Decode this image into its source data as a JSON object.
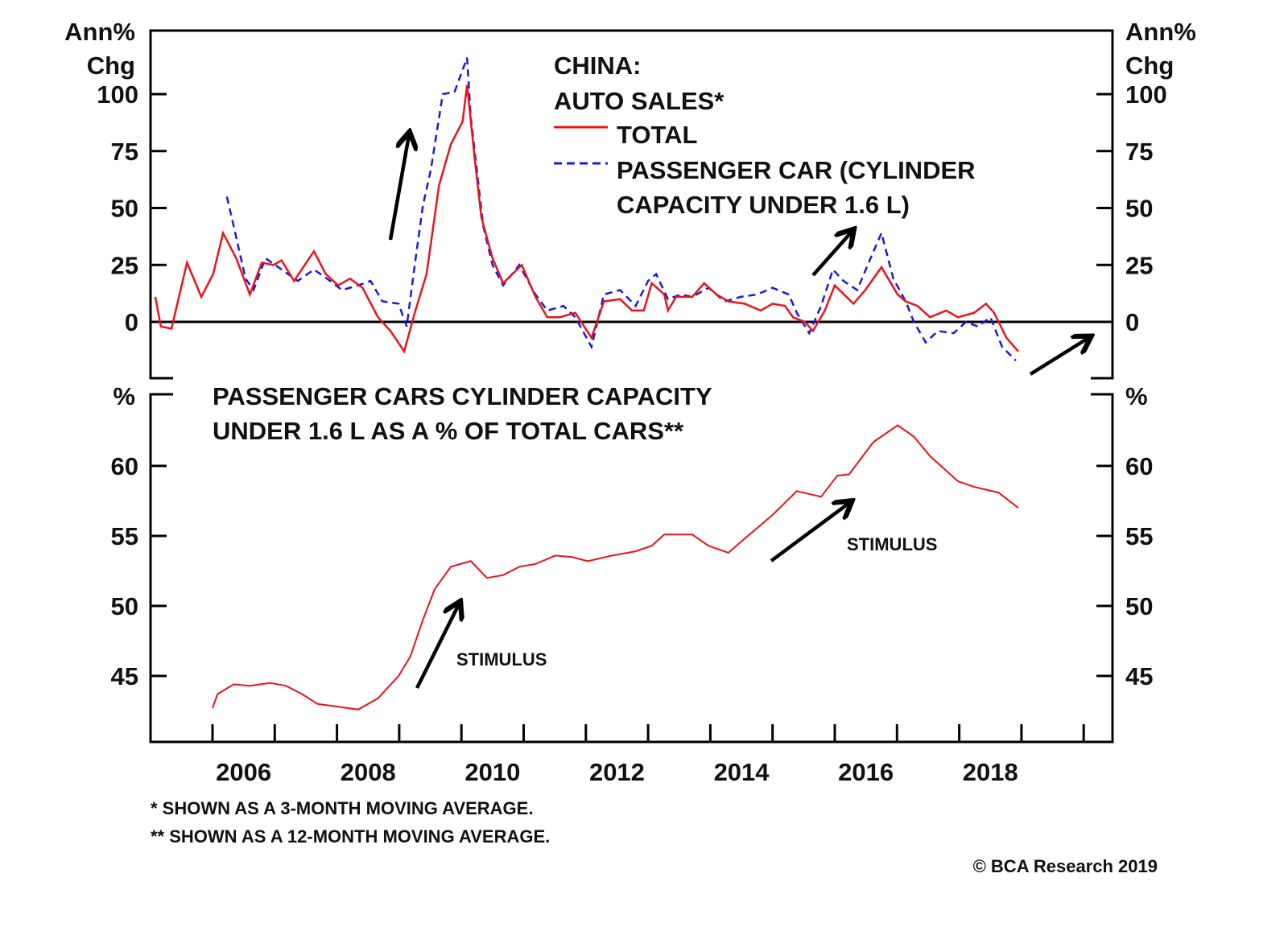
{
  "chart_data": [
    {
      "type": "line",
      "title_lines": [
        "CHINA:",
        "AUTO SALES*"
      ],
      "ylabel_lines": [
        "Ann%",
        "Chg"
      ],
      "ylim": [
        -25,
        125
      ],
      "yticks": [
        0,
        25,
        50,
        75,
        100
      ],
      "legend_placement": "top-center",
      "series": [
        {
          "name": "TOTAL",
          "color": "#e8141b",
          "dash": "solid",
          "x": [
            2005.08,
            2005.17,
            2005.34,
            2005.59,
            2005.82,
            2006.01,
            2006.17,
            2006.38,
            2006.6,
            2006.79,
            2006.98,
            2007.11,
            2007.31,
            2007.63,
            2007.82,
            2008.02,
            2008.21,
            2008.41,
            2008.66,
            2008.86,
            2009.08,
            2009.25,
            2009.44,
            2009.64,
            2009.83,
            2010.02,
            2010.09,
            2010.22,
            2010.32,
            2010.5,
            2010.67,
            2010.97,
            2011.19,
            2011.38,
            2011.58,
            2011.83,
            2012.09,
            2012.29,
            2012.55,
            2012.74,
            2012.93,
            2013.06,
            2013.26,
            2013.32,
            2013.45,
            2013.71,
            2013.9,
            2014.1,
            2014.29,
            2014.55,
            2014.81,
            2015.0,
            2015.2,
            2015.33,
            2015.52,
            2015.65,
            2015.84,
            2016.0,
            2016.3,
            2016.49,
            2016.75,
            2017.01,
            2017.14,
            2017.33,
            2017.53,
            2017.79,
            2017.98,
            2018.24,
            2018.43,
            2018.56,
            2018.76,
            2018.95
          ],
          "values": [
            11,
            -2,
            -3,
            26,
            11,
            21,
            39,
            28,
            12,
            26,
            25,
            27,
            18,
            31,
            21,
            16,
            19,
            15,
            2,
            -4,
            -13,
            4,
            21,
            60,
            78,
            88,
            104,
            70,
            46,
            28,
            17,
            25,
            11,
            2,
            2,
            4,
            -7,
            9,
            10,
            5,
            5,
            17,
            12,
            5,
            11,
            11,
            17,
            12,
            9,
            8,
            5,
            8,
            7,
            2,
            0,
            -4,
            5,
            16,
            8,
            14,
            24,
            12,
            9,
            7,
            2,
            5,
            2,
            4,
            8,
            4,
            -7,
            -13
          ]
        },
        {
          "name_lines": [
            "PASSENGER CAR (CYLINDER",
            "CAPACITY UNDER 1.6 L)"
          ],
          "color": "#1a1adb",
          "dash": "dashed",
          "x": [
            2006.23,
            2006.34,
            2006.53,
            2006.66,
            2006.85,
            2007.11,
            2007.37,
            2007.63,
            2007.89,
            2008.08,
            2008.34,
            2008.54,
            2008.73,
            2008.99,
            2009.12,
            2009.25,
            2009.38,
            2009.51,
            2009.7,
            2009.89,
            2010.09,
            2010.15,
            2010.35,
            2010.5,
            2010.67,
            2010.93,
            2011.19,
            2011.38,
            2011.64,
            2011.83,
            2012.09,
            2012.29,
            2012.55,
            2012.8,
            2013.0,
            2013.13,
            2013.32,
            2013.52,
            2013.71,
            2013.97,
            2014.23,
            2014.49,
            2014.75,
            2015.0,
            2015.26,
            2015.39,
            2015.59,
            2015.78,
            2015.97,
            2016.14,
            2016.36,
            2016.56,
            2016.75,
            2016.94,
            2017.14,
            2017.27,
            2017.46,
            2017.66,
            2017.91,
            2018.11,
            2018.3,
            2018.5,
            2018.69,
            2018.91
          ],
          "values": [
            55,
            42,
            19,
            14,
            28,
            23,
            18,
            23,
            18,
            14,
            16,
            18,
            9,
            8,
            -2,
            25,
            51,
            67,
            100,
            101,
            116,
            90,
            42,
            25,
            16,
            25,
            12,
            5,
            7,
            2,
            -11,
            12,
            14,
            7,
            18,
            21,
            10,
            12,
            11,
            15,
            9,
            11,
            12,
            15,
            12,
            4,
            -5,
            7,
            23,
            18,
            14,
            27,
            39,
            19,
            9,
            0,
            -9,
            -4,
            -5,
            0,
            -2,
            2,
            -11,
            -17
          ]
        }
      ],
      "annotations": [
        "up-arrow-2009",
        "up-arrow-2015",
        "up-arrow-2019"
      ]
    },
    {
      "type": "line",
      "title_lines": [
        "PASSENGER CARS CYLINDER CAPACITY",
        "UNDER 1.6 L AS A % OF TOTAL CARS**"
      ],
      "ylabel": "%",
      "ylim": [
        40.5,
        65
      ],
      "yticks": [
        45,
        50,
        55,
        60
      ],
      "series": [
        {
          "name": "Share under 1.6 L",
          "color": "#e8141b",
          "x": [
            2006.0,
            2006.08,
            2006.34,
            2006.6,
            2006.92,
            2007.18,
            2007.44,
            2007.69,
            2008.02,
            2008.34,
            2008.66,
            2008.99,
            2009.18,
            2009.38,
            2009.57,
            2009.83,
            2010.15,
            2010.41,
            2010.67,
            2010.93,
            2011.19,
            2011.51,
            2011.77,
            2012.03,
            2012.42,
            2012.8,
            2013.06,
            2013.26,
            2013.71,
            2013.97,
            2014.29,
            2014.55,
            2015.0,
            2015.39,
            2015.78,
            2016.04,
            2016.23,
            2016.62,
            2017.01,
            2017.27,
            2017.53,
            2017.98,
            2018.24,
            2018.63,
            2018.95
          ],
          "values": [
            42.7,
            43.7,
            44.4,
            44.3,
            44.5,
            44.3,
            43.7,
            43.0,
            42.8,
            42.6,
            43.4,
            45.0,
            46.4,
            49.0,
            51.2,
            52.8,
            53.2,
            52.0,
            52.2,
            52.8,
            53.0,
            53.6,
            53.5,
            53.2,
            53.6,
            53.9,
            54.3,
            55.1,
            55.1,
            54.3,
            53.8,
            54.8,
            56.5,
            58.2,
            57.8,
            59.3,
            59.4,
            61.7,
            62.9,
            62.1,
            60.7,
            58.9,
            58.5,
            58.1,
            57.0
          ]
        }
      ],
      "annotations": [
        "STIMULUS",
        "STIMULUS"
      ]
    }
  ],
  "labels": {
    "top_ylabel_1": "Ann%",
    "top_ylabel_2": "Chg",
    "top_title_1": "CHINA:",
    "top_title_2": "AUTO SALES*",
    "legend_total": "TOTAL",
    "legend_passenger_1": "PASSENGER CAR (CYLINDER",
    "legend_passenger_2": "CAPACITY UNDER 1.6 L)",
    "bottom_ylabel": "%",
    "bottom_title_1": "PASSENGER CARS CYLINDER CAPACITY",
    "bottom_title_2": "UNDER 1.6 L AS A % OF TOTAL CARS**",
    "stimulus_1": "STIMULUS",
    "stimulus_2": "STIMULUS",
    "top_ticks": [
      "100",
      "75",
      "50",
      "25",
      "0"
    ],
    "bottom_ticks": [
      "60",
      "55",
      "50",
      "45"
    ],
    "x_ticks": [
      "2006",
      "2008",
      "2010",
      "2012",
      "2014",
      "2016",
      "2018"
    ],
    "footnote_1": "*  SHOWN AS A 3-MONTH MOVING AVERAGE.",
    "footnote_2": "** SHOWN AS A 12-MONTH MOVING AVERAGE.",
    "copyright": "© BCA Research 2019"
  }
}
